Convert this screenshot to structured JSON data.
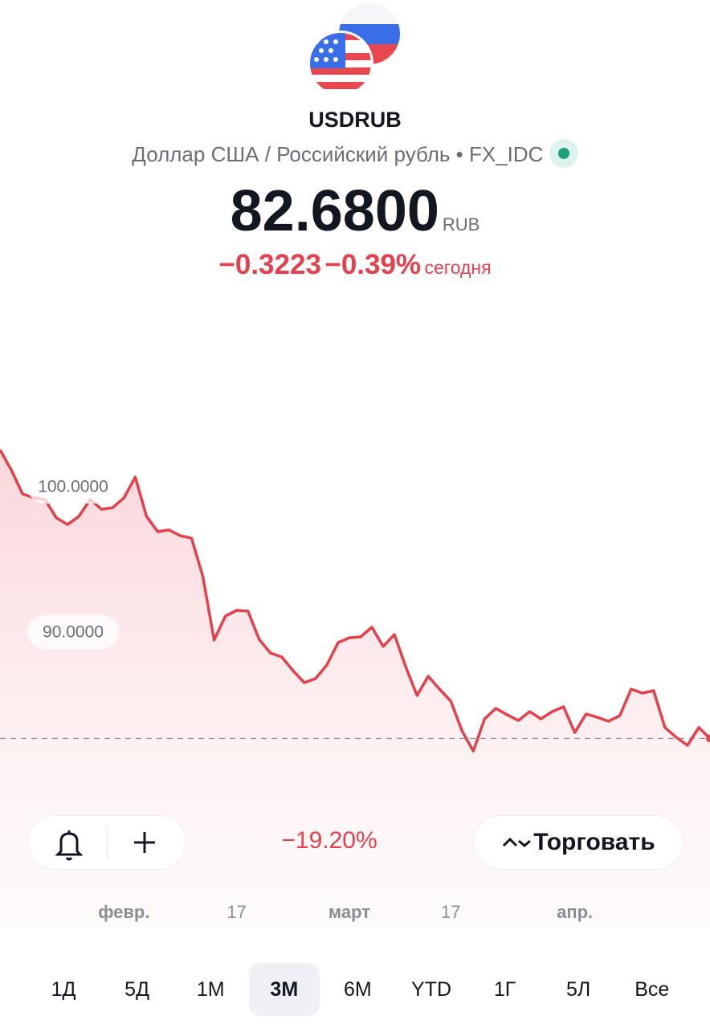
{
  "header": {
    "symbol": "USDRUB",
    "description": "Доллар США / Российский рубль • FX_IDC",
    "price": "82.6800",
    "currency": "RUB",
    "change": "−0.3223",
    "change_percent": "−0.39%",
    "period": "сегодня"
  },
  "chart_data": {
    "type": "line",
    "categories": [
      null,
      null,
      null,
      null,
      null,
      null,
      null,
      null,
      null,
      null,
      null,
      "февр.",
      null,
      null,
      null,
      null,
      null,
      null,
      null,
      null,
      null,
      "17",
      null,
      null,
      null,
      null,
      null,
      null,
      null,
      null,
      null,
      "март",
      null,
      null,
      null,
      null,
      null,
      null,
      null,
      null,
      "17",
      null,
      null,
      null,
      null,
      null,
      null,
      null,
      null,
      null,
      null,
      "апр.",
      null,
      null,
      null,
      null,
      null,
      null,
      null,
      null,
      null,
      null,
      null,
      null
    ],
    "series": [
      {
        "name": "USDRUB",
        "color": "#e5414d",
        "values": [
          102.54,
          101.16,
          99.5,
          99.23,
          99.12,
          97.85,
          97.4,
          97.96,
          99.12,
          98.45,
          98.56,
          99.23,
          100.66,
          97.96,
          96.91,
          97.02,
          96.63,
          96.46,
          93.81,
          89.45,
          91.1,
          91.49,
          91.44,
          89.5,
          88.56,
          88.29,
          87.35,
          86.52,
          86.8,
          87.73,
          89.28,
          89.61,
          89.67,
          90.33,
          89.01,
          89.83,
          87.62,
          85.64,
          86.96,
          86.08,
          85.25,
          83.2,
          81.82,
          84.03,
          84.75,
          84.31,
          83.92,
          84.53,
          84.03,
          84.53,
          84.86,
          83.09,
          84.36,
          84.14,
          83.87,
          84.25,
          86.08,
          85.8,
          85.97,
          83.43,
          82.76,
          82.21,
          83.43,
          82.68
        ]
      }
    ],
    "baseline": 82.68,
    "ylim": [
      69.67,
      113.59
    ],
    "yticks": [
      {
        "value": 90,
        "label": "90.0000"
      },
      {
        "value": 100,
        "label": "100.0000"
      }
    ]
  },
  "controls": {
    "period_change": "−19.20%",
    "trade": "Торговать",
    "ranges": [
      "1Д",
      "5Д",
      "1М",
      "3М",
      "6М",
      "YTD",
      "1Г",
      "5Л",
      "Все"
    ],
    "active_range": 3
  }
}
